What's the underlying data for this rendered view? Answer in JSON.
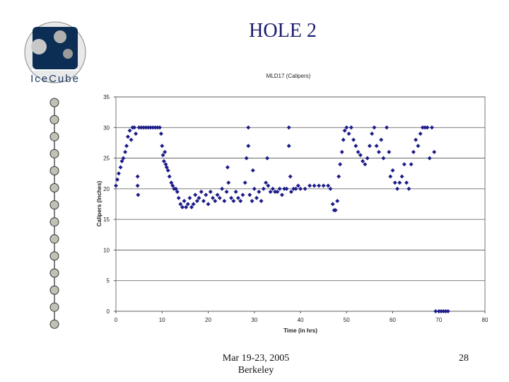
{
  "slide": {
    "title": "HOLE 2",
    "logo": "IceCube",
    "footer_date": "Mar 19-23, 2005",
    "footer_place": "Berkeley",
    "page_number": 28
  },
  "chart_data": {
    "type": "scatter",
    "title": "MLD17 (Calipers)",
    "x_label": "Time (in hrs)",
    "y_label": "Calipers (Inches)",
    "color": "#1c1c8a",
    "grid": true,
    "xlim": [
      0,
      80
    ],
    "xticks": [
      0,
      10,
      20,
      30,
      40,
      50,
      60,
      70,
      80
    ],
    "ylim": [
      0,
      35
    ],
    "yticks": [
      0,
      5,
      10,
      15,
      20,
      25,
      30,
      35
    ],
    "x": [
      0,
      0.3,
      0.6,
      1,
      1.3,
      1.6,
      2,
      2.3,
      2.6,
      3,
      3.3,
      3.6,
      4,
      4.3,
      4.7,
      4.7,
      4.8,
      5,
      5.5,
      6,
      6.5,
      7,
      7.5,
      8,
      8.5,
      9,
      9.5,
      9.8,
      10,
      10.2,
      10.4,
      10.6,
      10.8,
      11,
      11.3,
      11.6,
      12,
      12.3,
      12.6,
      13,
      13.3,
      13.6,
      14,
      14.4,
      14.8,
      15.2,
      15.6,
      16,
      16.4,
      16.8,
      17.2,
      17.6,
      18,
      18.5,
      19,
      19.5,
      20,
      20.5,
      21,
      21.5,
      22,
      22.5,
      23,
      23.5,
      24,
      24.2,
      24.4,
      25,
      25.5,
      26,
      26.5,
      27,
      27.5,
      28,
      28.3,
      28.7,
      28.7,
      29,
      29.5,
      29.7,
      30,
      30.5,
      31,
      31.5,
      32,
      32.5,
      32.8,
      33,
      33.5,
      34,
      34.5,
      35,
      35.5,
      36,
      36.5,
      37,
      37.5,
      37.5,
      37.8,
      38,
      38.5,
      39,
      39.5,
      40,
      41,
      42,
      43,
      44,
      45,
      46,
      46.5,
      47,
      47.3,
      47.6,
      48,
      48.3,
      48.6,
      49,
      49.3,
      49.6,
      50,
      50.5,
      51,
      51.5,
      52,
      52.5,
      53,
      53.5,
      54,
      54.5,
      55,
      55.5,
      56,
      56.5,
      57,
      57.5,
      58,
      58.7,
      59.2,
      59.5,
      60,
      60.5,
      61,
      61.5,
      62,
      62.5,
      63,
      63.5,
      64,
      64.5,
      65,
      65.5,
      66,
      66.5,
      67,
      67.5,
      68,
      68.5,
      69,
      69.3,
      70,
      70.5,
      71,
      71.5,
      72
    ],
    "values": [
      20.5,
      21.5,
      22.5,
      23.5,
      24.5,
      25,
      26,
      27,
      28.5,
      29.5,
      28,
      30,
      30,
      29,
      22,
      20.5,
      19,
      30,
      30,
      30,
      30,
      30,
      30,
      30,
      30,
      30,
      30,
      29,
      27,
      25.5,
      24.5,
      26,
      24,
      23.5,
      23,
      22,
      21,
      20.5,
      20,
      20,
      19.5,
      18.5,
      17.5,
      17,
      18,
      17,
      17.5,
      18.5,
      17,
      17.5,
      19,
      18,
      18.5,
      19.5,
      18,
      19,
      17.5,
      19.5,
      18.5,
      18,
      19,
      18.5,
      20,
      18,
      19.5,
      23.5,
      21,
      18.5,
      18,
      19.5,
      18.5,
      18,
      19,
      21,
      25,
      30,
      27,
      19,
      18,
      23,
      20,
      18.5,
      19.5,
      18,
      20,
      21,
      25,
      20.5,
      19.5,
      20,
      19.5,
      19.5,
      20,
      19,
      20,
      20,
      30,
      27,
      22,
      19.5,
      20,
      20,
      20.5,
      20,
      20,
      20.5,
      20.5,
      20.5,
      20.5,
      20.5,
      20,
      17.5,
      16.5,
      16.5,
      18,
      22,
      24,
      26,
      28,
      29.5,
      30,
      29,
      30,
      28,
      27,
      26,
      25.5,
      24.5,
      24,
      25,
      27,
      29,
      30,
      27,
      26,
      28,
      25,
      30,
      26,
      22,
      23,
      21,
      20,
      21,
      22,
      24,
      21,
      20,
      24,
      26,
      28,
      27,
      29,
      30,
      30,
      30,
      25,
      30,
      26,
      0,
      0,
      0,
      0,
      0,
      0
    ]
  }
}
